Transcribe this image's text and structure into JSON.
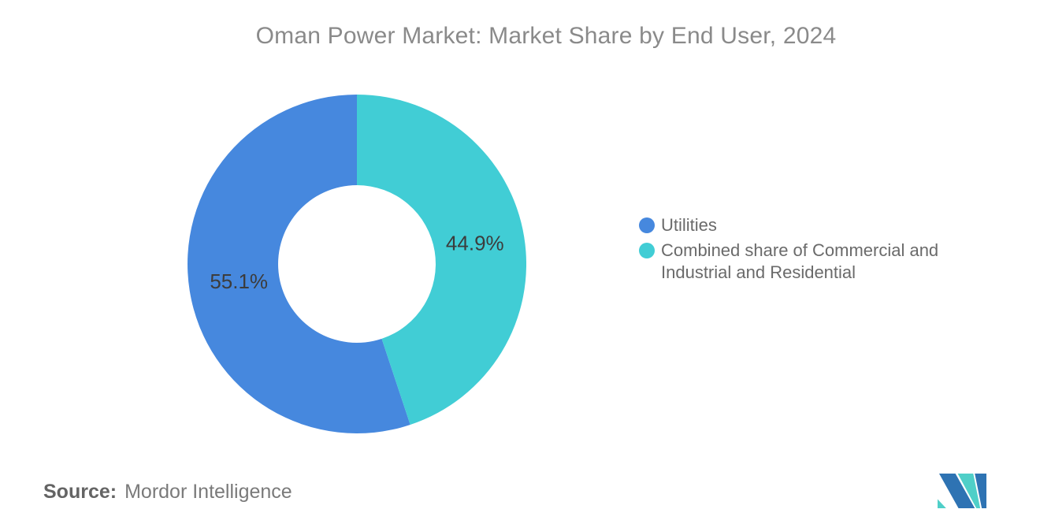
{
  "title": "Oman Power Market: Market Share by End User, 2024",
  "chart_data": {
    "type": "pie",
    "subtype": "donut",
    "title": "Oman Power Market: Market Share by End User, 2024",
    "slices": [
      {
        "label": "Utilities",
        "value": 55.1,
        "display": "55.1%",
        "color": "#4688DE"
      },
      {
        "label": "Combined share of Commercial and Industrial and Residential",
        "value": 44.9,
        "display": "44.9%",
        "color": "#41CDD5"
      }
    ],
    "start_angle_deg": 0,
    "direction": "first-slice-counterclockwise-from-top",
    "inner_radius_ratio": 0.465,
    "label_position": "inside",
    "label_color": "#3c3c3c",
    "legend_position": "right",
    "background": "#ffffff"
  },
  "legend": {
    "items": [
      {
        "label": "Utilities",
        "color": "#4688DE"
      },
      {
        "label": "Combined share of Commercial and Industrial and Residential",
        "color": "#41CDD5"
      }
    ]
  },
  "footer": {
    "source_label": "Source:",
    "source_value": "Mordor Intelligence",
    "logo_name": "mordor-intelligence-logo",
    "logo_colors": {
      "blue": "#2E73B3",
      "teal": "#4FCFC8"
    }
  }
}
